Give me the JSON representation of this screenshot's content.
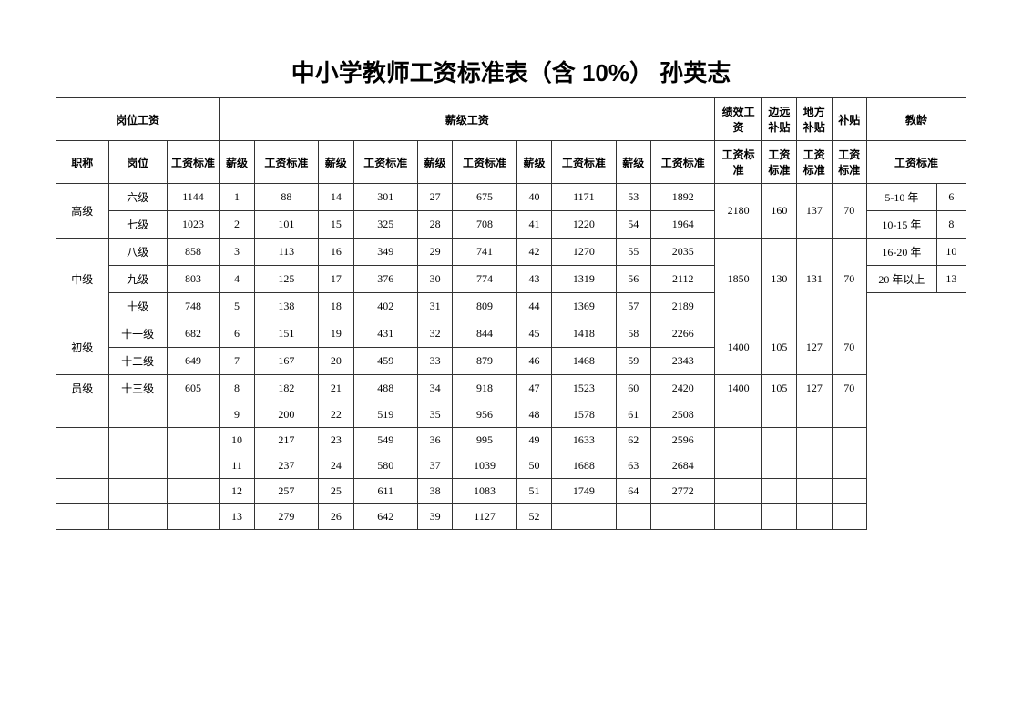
{
  "title": "中小学教师工资标准表（含 10%）  孙英志",
  "header": {
    "post_salary": "岗位工资",
    "grade_salary": "薪级工资",
    "perf": "绩效工资",
    "remote": "边远补贴",
    "local": "地方补贴",
    "subsidy": "补贴",
    "seniority": "教龄",
    "title": "职称",
    "post": "岗位",
    "std": "工资标准",
    "grade": "薪级"
  },
  "rows": [
    {
      "title": "高级",
      "titleSpan": 2,
      "post": "六级",
      "postStd": "1144",
      "g": [
        "1",
        "88",
        "14",
        "301",
        "27",
        "675",
        "40",
        "1171",
        "53",
        "1892"
      ],
      "perf": "2180",
      "perfSpan": 2,
      "remote": "160",
      "remoteSpan": 2,
      "local": "137",
      "localSpan": 2,
      "subsidy": "70",
      "subsidySpan": 2,
      "senLabel": "5-10 年",
      "senVal": "6"
    },
    {
      "post": "七级",
      "postStd": "1023",
      "g": [
        "2",
        "101",
        "15",
        "325",
        "28",
        "708",
        "41",
        "1220",
        "54",
        "1964"
      ],
      "senLabel": "10-15 年",
      "senVal": "8"
    },
    {
      "title": "中级",
      "titleSpan": 3,
      "post": "八级",
      "postStd": "858",
      "g": [
        "3",
        "113",
        "16",
        "349",
        "29",
        "741",
        "42",
        "1270",
        "55",
        "2035"
      ],
      "perf": "1850",
      "perfSpan": 3,
      "remote": "130",
      "remoteSpan": 3,
      "local": "131",
      "localSpan": 3,
      "subsidy": "70",
      "subsidySpan": 3,
      "senLabel": "16-20 年",
      "senVal": "10"
    },
    {
      "post": "九级",
      "postStd": "803",
      "g": [
        "4",
        "125",
        "17",
        "376",
        "30",
        "774",
        "43",
        "1319",
        "56",
        "2112"
      ],
      "senLabel": "20 年以上",
      "senVal": "13"
    },
    {
      "post": "十级",
      "postStd": "748",
      "g": [
        "5",
        "138",
        "18",
        "402",
        "31",
        "809",
        "44",
        "1369",
        "57",
        "2189"
      ],
      "senTail": true
    },
    {
      "title": "初级",
      "titleSpan": 2,
      "post": "十一级",
      "postStd": "682",
      "g": [
        "6",
        "151",
        "19",
        "431",
        "32",
        "844",
        "45",
        "1418",
        "58",
        "2266"
      ],
      "perf": "1400",
      "perfSpan": 2,
      "remote": "105",
      "remoteSpan": 2,
      "local": "127",
      "localSpan": 2,
      "subsidy": "70",
      "subsidySpan": 2,
      "senTail": true
    },
    {
      "post": "十二级",
      "postStd": "649",
      "g": [
        "7",
        "167",
        "20",
        "459",
        "33",
        "879",
        "46",
        "1468",
        "59",
        "2343"
      ],
      "senTail": true
    },
    {
      "title": "员级",
      "titleSpan": 1,
      "post": "十三级",
      "postStd": "605",
      "g": [
        "8",
        "182",
        "21",
        "488",
        "34",
        "918",
        "47",
        "1523",
        "60",
        "2420"
      ],
      "perf": "1400",
      "perfSpan": 1,
      "remote": "105",
      "remoteSpan": 1,
      "local": "127",
      "localSpan": 1,
      "subsidy": "70",
      "subsidySpan": 1,
      "senTail": true
    },
    {
      "title": "",
      "titleSpan": 1,
      "post": "",
      "postStd": "",
      "g": [
        "9",
        "200",
        "22",
        "519",
        "35",
        "956",
        "48",
        "1578",
        "61",
        "2508"
      ],
      "perf": "",
      "perfSpan": 1,
      "remote": "",
      "remoteSpan": 1,
      "local": "",
      "localSpan": 1,
      "subsidy": "",
      "subsidySpan": 1,
      "senTail": true
    },
    {
      "title": "",
      "titleSpan": 1,
      "post": "",
      "postStd": "",
      "g": [
        "10",
        "217",
        "23",
        "549",
        "36",
        "995",
        "49",
        "1633",
        "62",
        "2596"
      ],
      "perf": "",
      "perfSpan": 1,
      "remote": "",
      "remoteSpan": 1,
      "local": "",
      "localSpan": 1,
      "subsidy": "",
      "subsidySpan": 1,
      "senTail": true
    },
    {
      "title": "",
      "titleSpan": 1,
      "post": "",
      "postStd": "",
      "g": [
        "11",
        "237",
        "24",
        "580",
        "37",
        "1039",
        "50",
        "1688",
        "63",
        "2684"
      ],
      "perf": "",
      "perfSpan": 1,
      "remote": "",
      "remoteSpan": 1,
      "local": "",
      "localSpan": 1,
      "subsidy": "",
      "subsidySpan": 1,
      "senTail": true
    },
    {
      "title": "",
      "titleSpan": 1,
      "post": "",
      "postStd": "",
      "g": [
        "12",
        "257",
        "25",
        "611",
        "38",
        "1083",
        "51",
        "1749",
        "64",
        "2772"
      ],
      "perf": "",
      "perfSpan": 1,
      "remote": "",
      "remoteSpan": 1,
      "local": "",
      "localSpan": 1,
      "subsidy": "",
      "subsidySpan": 1,
      "senTail": true
    },
    {
      "title": "",
      "titleSpan": 1,
      "post": "",
      "postStd": "",
      "g": [
        "13",
        "279",
        "26",
        "642",
        "39",
        "1127",
        "52",
        "",
        "",
        ""
      ],
      "perf": "",
      "perfSpan": 1,
      "remote": "",
      "remoteSpan": 1,
      "local": "",
      "localSpan": 1,
      "subsidy": "",
      "subsidySpan": 1,
      "senTail": true
    }
  ],
  "cols": {
    "title": 45,
    "post": 50,
    "postStd": 45,
    "grade": 30,
    "gradeStd": 55,
    "perf": 40,
    "remote": 30,
    "local": 30,
    "subsidy": 30,
    "senLabel": 60,
    "senVal": 25
  }
}
